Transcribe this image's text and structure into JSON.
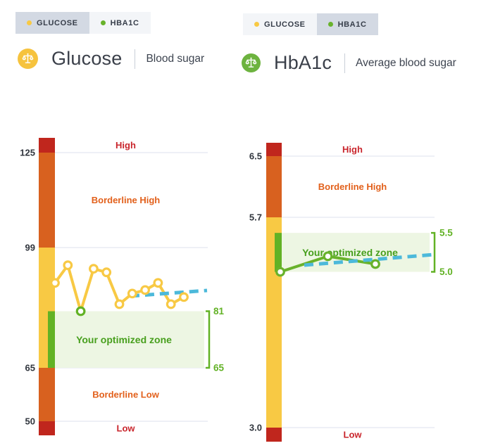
{
  "colors": {
    "glucose_series": "#F8C944",
    "hba1c_series": "#68B22B",
    "bar_red": "#C0261D",
    "bar_orange": "#D8611F",
    "bar_yellow": "#F8C944",
    "bar_green": "#62B225",
    "zone_bg": "#EDF6E3",
    "zone_text": "#479F1D",
    "trend_blue": "#4CB9DA",
    "gridline": "#E9ECF3",
    "tick_text": "#30353D",
    "label_red": "#C9252C",
    "label_orange": "#E2601B",
    "tab_active_bg": "#D3D9E3",
    "tab_inactive_bg": "#F3F5F8"
  },
  "panels": [
    {
      "tabs": [
        {
          "label": "GLUCOSE",
          "active": true,
          "dot_color": "#F8C944"
        },
        {
          "label": "HBA1C",
          "active": false,
          "dot_color": "#68B22B"
        }
      ],
      "title": "Glucose",
      "subtitle": "Blood sugar",
      "icon": "scale-icon",
      "icon_bg": "#F6C33E"
    },
    {
      "tabs": [
        {
          "label": "GLUCOSE",
          "active": false,
          "dot_color": "#F8C944"
        },
        {
          "label": "HBA1C",
          "active": true,
          "dot_color": "#68B22B"
        }
      ],
      "title": "HbA1c",
      "subtitle": "Average blood sugar",
      "icon": "scale-icon",
      "icon_bg": "#6DB33F"
    }
  ],
  "chart_data": [
    {
      "type": "line",
      "title": "Glucose",
      "series_name": "GLUCOSE",
      "series_color_key": "glucose_series",
      "y_tick_labels": [
        "125",
        "99",
        "65",
        "50"
      ],
      "y_ticks": [
        125,
        99,
        65,
        50
      ],
      "values": [
        89,
        94,
        81,
        93,
        92,
        83,
        86,
        87,
        89,
        83,
        85
      ],
      "highlight_index": 2,
      "bands": [
        {
          "label": "High",
          "color": "red",
          "from": "top",
          "to": 125
        },
        {
          "label": "Borderline High",
          "color": "orange",
          "from": 125,
          "to": 99
        },
        {
          "label": "",
          "color": "yellow",
          "from": 99,
          "to": 65
        },
        {
          "label": "Borderline Low",
          "color": "orange",
          "from": 65,
          "to": 50
        },
        {
          "label": "Low",
          "color": "red",
          "from": 50,
          "to": "bottom"
        }
      ],
      "optimized_zone": {
        "label": "Your optimized zone",
        "max": 81,
        "min": 65,
        "bracket_labels": [
          "81",
          "65"
        ]
      },
      "trend": "rising-dashed",
      "grid": true,
      "legend_position": "top-left"
    },
    {
      "type": "line",
      "title": "HbA1c",
      "series_name": "HBA1C",
      "series_color_key": "hba1c_series",
      "y_tick_labels": [
        "6.5",
        "5.7",
        "3.0"
      ],
      "y_ticks": [
        6.5,
        5.7,
        3.0
      ],
      "values": [
        5.0,
        5.2,
        5.1
      ],
      "highlight_index": null,
      "bands": [
        {
          "label": "High",
          "color": "red",
          "from": "top",
          "to": 6.5
        },
        {
          "label": "Borderline High",
          "color": "orange",
          "from": 6.5,
          "to": 5.7
        },
        {
          "label": "",
          "color": "yellow",
          "from": 5.7,
          "to": 3.0
        },
        {
          "label": "Low",
          "color": "red",
          "from": 3.0,
          "to": "bottom"
        }
      ],
      "optimized_zone": {
        "label": "Your optimized zone",
        "max": 5.5,
        "min": 5.0,
        "bracket_labels": [
          "5.5",
          "5.0"
        ]
      },
      "trend": "rising-dashed",
      "grid": true,
      "legend_position": "top-left"
    }
  ]
}
